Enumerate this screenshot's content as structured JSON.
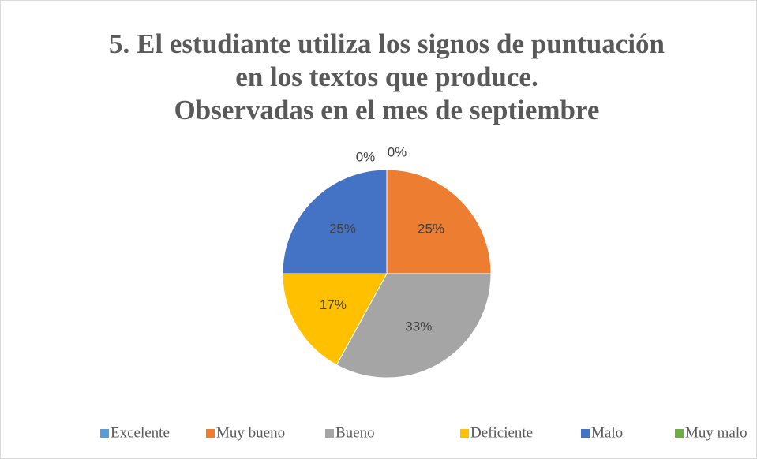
{
  "chart_data": {
    "type": "pie",
    "title": [
      "5. El estudiante utiliza los signos de puntuación",
      "en los textos que produce.",
      "Observadas en el mes de septiembre"
    ],
    "categories": [
      "Excelente",
      "Muy bueno",
      "Bueno",
      "Deficiente",
      "Malo",
      "Muy malo"
    ],
    "values": [
      0,
      25,
      33,
      17,
      25,
      0
    ],
    "value_labels": [
      "0%",
      "25%",
      "33%",
      "17%",
      "25%",
      "0%"
    ],
    "colors": [
      "#5b9bd5",
      "#ed7d31",
      "#a5a5a5",
      "#ffc000",
      "#4472c4",
      "#70ad47"
    ],
    "legend": "bottom"
  }
}
